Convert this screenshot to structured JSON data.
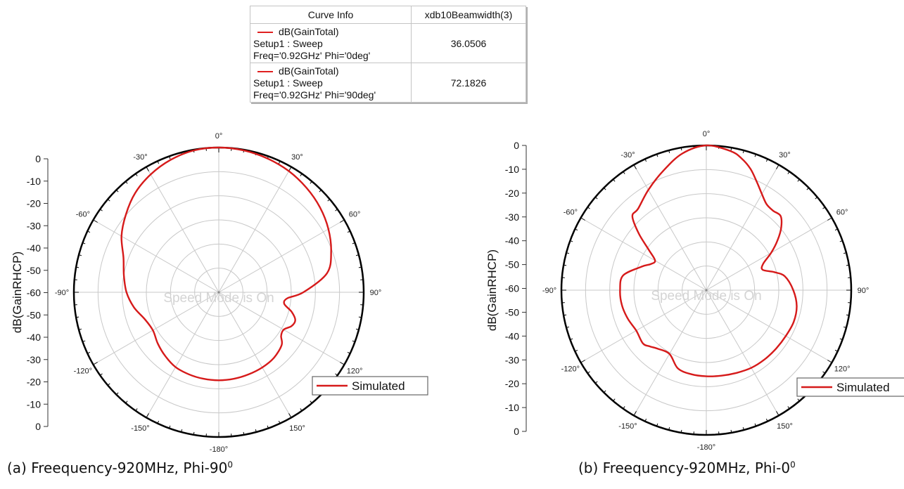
{
  "info_table": {
    "headers": [
      "Curve Info",
      "xdb10Beamwidth(3)"
    ],
    "rows": [
      {
        "curve": "dB(GainTotal)",
        "setup": "Setup1 : Sweep",
        "freq": "Freq='0.92GHz' Phi='0deg'",
        "value": "36.0506"
      },
      {
        "curve": "dB(GainTotal)",
        "setup": "Setup1 : Sweep",
        "freq": "Freq='0.92GHz' Phi='90deg'",
        "value": "72.1826"
      }
    ]
  },
  "watermark": "Speed Mode is On",
  "captions": [
    {
      "text": "(a) Freequency-920MHz, Phi-90",
      "sup": "0"
    },
    {
      "text": "(b) Freequency-920MHz, Phi-0",
      "sup": "0"
    }
  ],
  "colors": {
    "curve": "#d61a1a",
    "grid": "#c8c8c8",
    "outer_ring": "#000000"
  },
  "chart_data": [
    {
      "type": "polar-line",
      "ylabel": "dB(GainRHCP)",
      "radial_range": [
        -60,
        0
      ],
      "radial_ticks_upper": [
        "0",
        "-10",
        "-20",
        "-30",
        "-40",
        "-50",
        "-60"
      ],
      "radial_ticks_lower": [
        "-50",
        "-40",
        "-30",
        "-20",
        "-10",
        "0"
      ],
      "angle_labels": [
        "0°",
        "30°",
        "60°",
        "90°",
        "120°",
        "150°",
        "-180°",
        "-150°",
        "-120°",
        "-90°",
        "-60°",
        "-30°"
      ],
      "grid": true,
      "legend": "bottom-right",
      "series": [
        {
          "name": "Simulated",
          "theta": [
            0,
            10,
            20,
            30,
            40,
            50,
            60,
            70,
            80,
            90,
            95,
            100,
            105,
            110,
            115,
            120,
            125,
            130,
            140,
            150,
            160,
            170,
            180,
            190,
            200,
            210,
            220,
            230,
            240,
            250,
            260,
            270,
            280,
            290,
            300,
            310,
            320,
            330,
            340,
            350
          ],
          "r_db": [
            0,
            -0.3,
            -1,
            -2,
            -3.5,
            -5.3,
            -7.6,
            -10.5,
            -14.5,
            -25,
            -31.5,
            -32.5,
            -28.8,
            -26.3,
            -26.8,
            -29,
            -28.5,
            -26,
            -24.5,
            -24,
            -23.8,
            -23.6,
            -23.5,
            -23.6,
            -23.8,
            -24.2,
            -25.5,
            -27,
            -28.5,
            -27.4,
            -24.3,
            -21.8,
            -20.1,
            -18,
            -13.5,
            -9.8,
            -6.2,
            -3.6,
            -1.6,
            -0.3
          ]
        }
      ]
    },
    {
      "type": "polar-line",
      "ylabel": "dB(GainRHCP)",
      "radial_range": [
        -60,
        0
      ],
      "radial_ticks_upper": [
        "0",
        "-10",
        "-20",
        "-30",
        "-40",
        "-50",
        "-60"
      ],
      "radial_ticks_lower": [
        "-50",
        "-40",
        "-30",
        "-20",
        "-10",
        "0"
      ],
      "angle_labels": [
        "0°",
        "30°",
        "60°",
        "90°",
        "120°",
        "150°",
        "-180°",
        "-150°",
        "-120°",
        "-90°",
        "-60°",
        "-30°"
      ],
      "grid": true,
      "legend": "bottom-right",
      "series": [
        {
          "name": "Simulated",
          "theta": [
            0,
            10,
            15,
            20,
            25,
            30,
            35,
            40,
            45,
            50,
            55,
            60,
            65,
            70,
            75,
            80,
            90,
            100,
            110,
            120,
            130,
            140,
            150,
            160,
            170,
            180,
            190,
            200,
            210,
            220,
            225,
            230,
            240,
            250,
            260,
            270,
            280,
            290,
            295,
            300,
            305,
            310,
            315,
            320,
            330,
            340,
            350
          ],
          "r_db": [
            0,
            -1.5,
            -3.5,
            -6.5,
            -10.5,
            -14,
            -16.5,
            -17,
            -16.5,
            -19.5,
            -24,
            -29,
            -34,
            -35.2,
            -31,
            -27,
            -24,
            -22,
            -21.5,
            -22,
            -22.3,
            -22.5,
            -22.8,
            -23.5,
            -24,
            -24.3,
            -24.6,
            -25.5,
            -29.5,
            -28.4,
            -27,
            -25.7,
            -26.5,
            -25.4,
            -24.5,
            -24.3,
            -25,
            -31.5,
            -34.5,
            -35.5,
            -31,
            -23.5,
            -16.7,
            -16,
            -12,
            -7.5,
            -2.5
          ]
        }
      ]
    }
  ]
}
